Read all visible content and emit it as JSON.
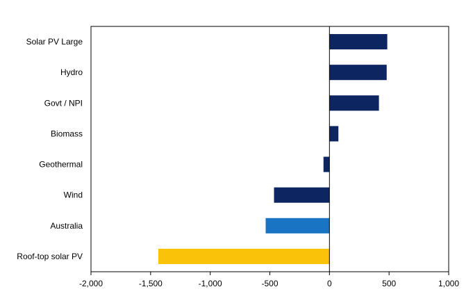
{
  "chart_data": {
    "type": "bar",
    "orientation": "horizontal",
    "title": "",
    "xlabel": "",
    "ylabel": "",
    "xlim": [
      -2000,
      1000
    ],
    "x_ticks": [
      -2000,
      -1500,
      -1000,
      -500,
      0,
      500,
      1000
    ],
    "x_tick_labels": [
      "-2,000",
      "-1,500",
      "-1,000",
      "-500",
      "0",
      "500",
      "1,000"
    ],
    "categories": [
      "Solar PV Large",
      "Hydro",
      "Govt / NPI",
      "Biomass",
      "Geothermal",
      "Wind",
      "Australia",
      "Roof-top solar PV"
    ],
    "values": [
      485,
      480,
      415,
      75,
      -50,
      -465,
      -535,
      -1435
    ],
    "bar_colors": [
      "#0d2561",
      "#0d2561",
      "#0d2561",
      "#0d2561",
      "#0d2561",
      "#0d2561",
      "#1a74c4",
      "#fbc20a"
    ],
    "grid": false,
    "legend": "none"
  }
}
